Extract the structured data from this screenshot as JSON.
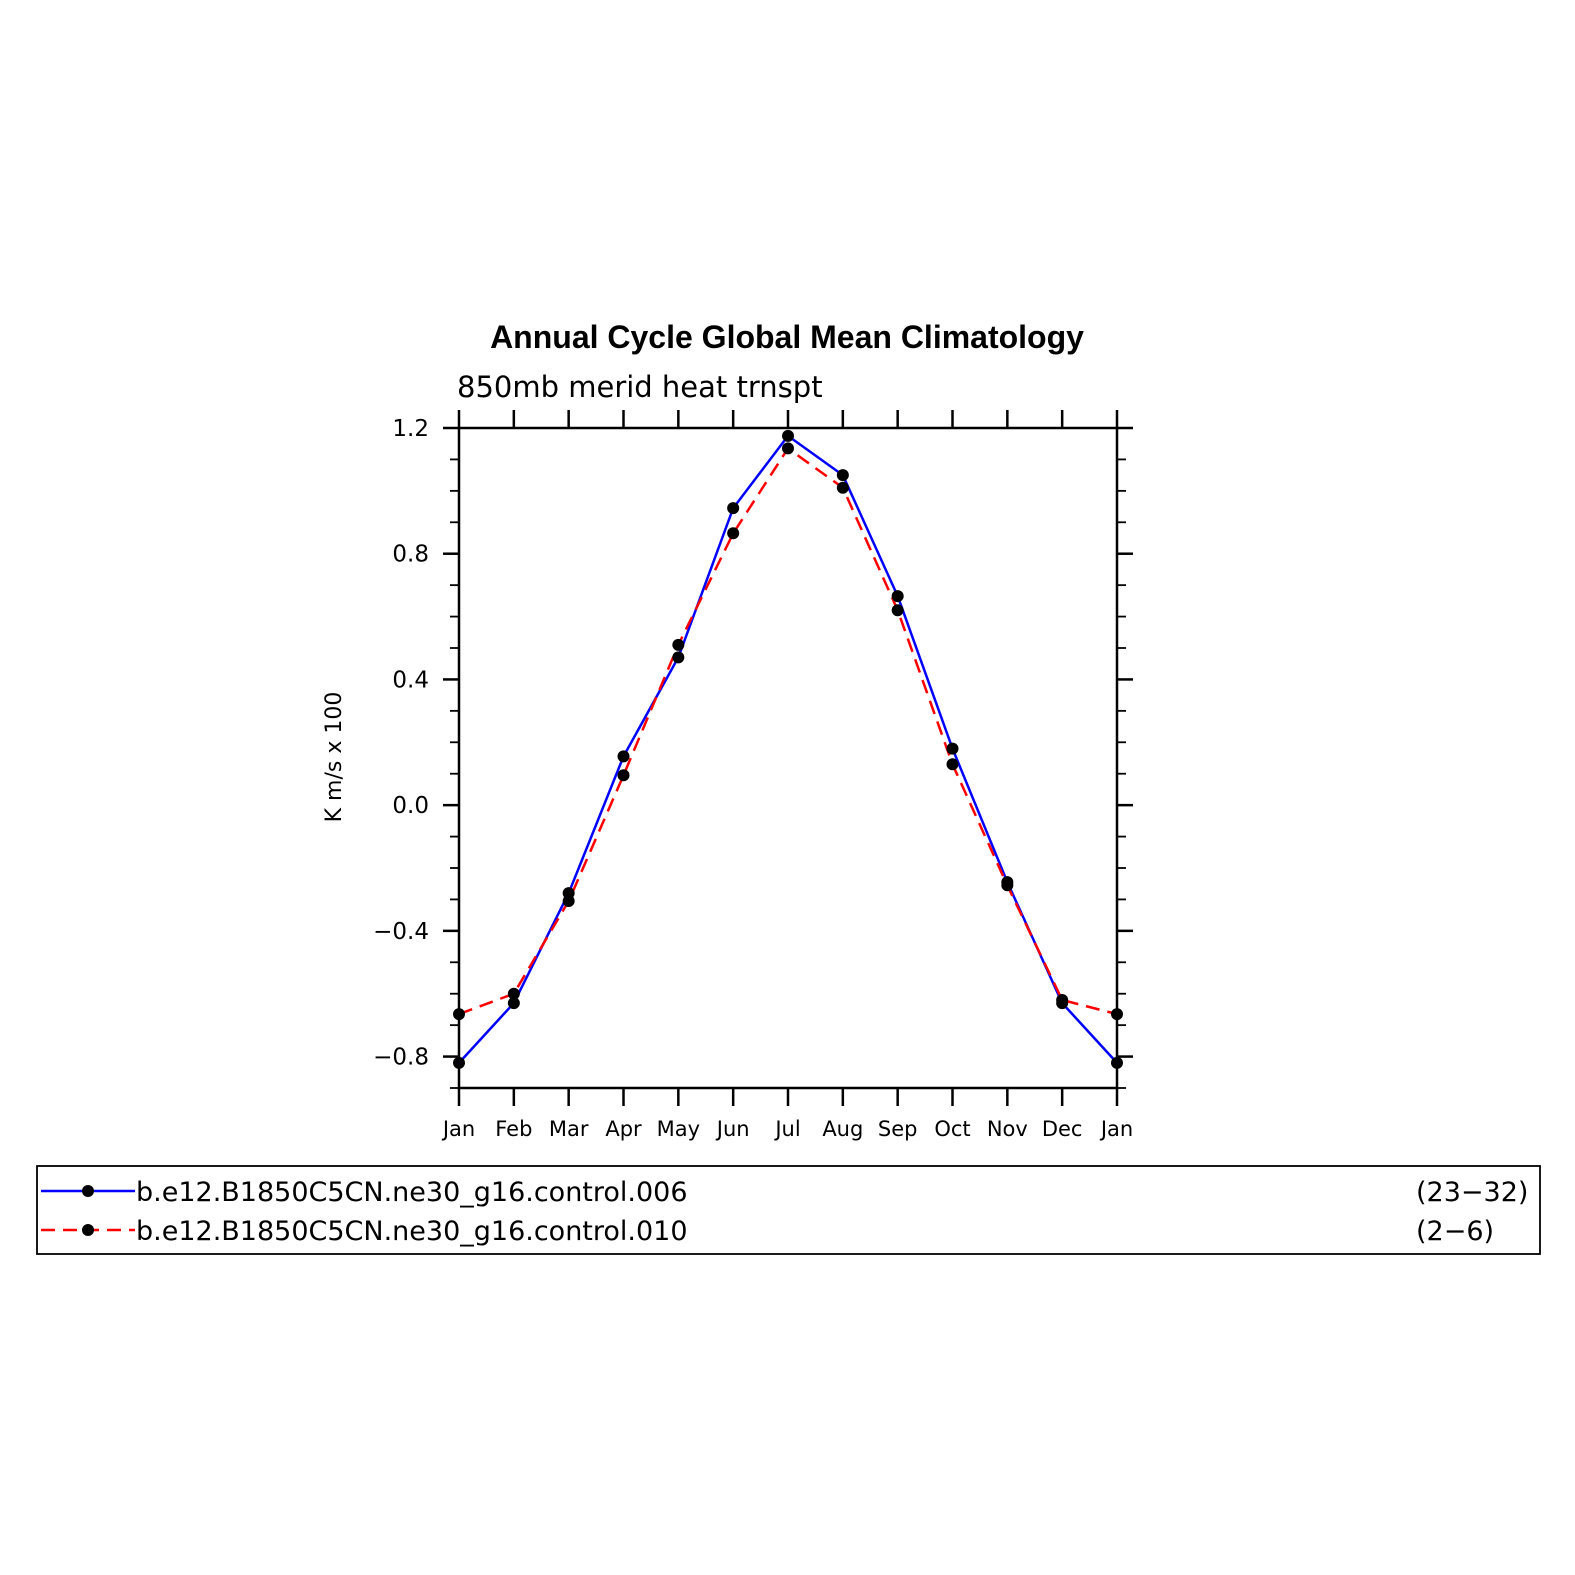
{
  "chart_data": {
    "type": "line",
    "title": "Annual Cycle Global Mean Climatology",
    "subtitle": "850mb merid heat trnspt",
    "xlabel": "",
    "ylabel": "K m/s x 100",
    "ylim": [
      -0.9,
      1.2
    ],
    "y_ticks": [
      "1.2",
      "0.8",
      "0.4",
      "0.0",
      "−0.4",
      "−0.8"
    ],
    "y_tick_values": [
      1.2,
      0.8,
      0.4,
      0.0,
      -0.4,
      -0.8
    ],
    "categories": [
      "Jan",
      "Feb",
      "Mar",
      "Apr",
      "May",
      "Jun",
      "Jul",
      "Aug",
      "Sep",
      "Oct",
      "Nov",
      "Dec",
      "Jan"
    ],
    "grid": false,
    "legend_position": "bottom",
    "series": [
      {
        "name": "b.e12.B1850C5CN.ne30_g16.control.006",
        "years": "(23−32)",
        "color": "#0000ff",
        "dash": "solid",
        "marker": "filled-circle",
        "values": [
          -0.82,
          -0.63,
          -0.28,
          0.155,
          0.47,
          0.945,
          1.175,
          1.05,
          0.665,
          0.18,
          -0.245,
          -0.63,
          -0.82
        ]
      },
      {
        "name": "b.e12.B1850C5CN.ne30_g16.control.010",
        "years": "(2−6)",
        "color": "#ff0000",
        "dash": "dashed",
        "marker": "filled-circle",
        "values": [
          -0.665,
          -0.6,
          -0.305,
          0.095,
          0.51,
          0.865,
          1.135,
          1.01,
          0.62,
          0.13,
          -0.255,
          -0.62,
          -0.665
        ]
      }
    ]
  }
}
